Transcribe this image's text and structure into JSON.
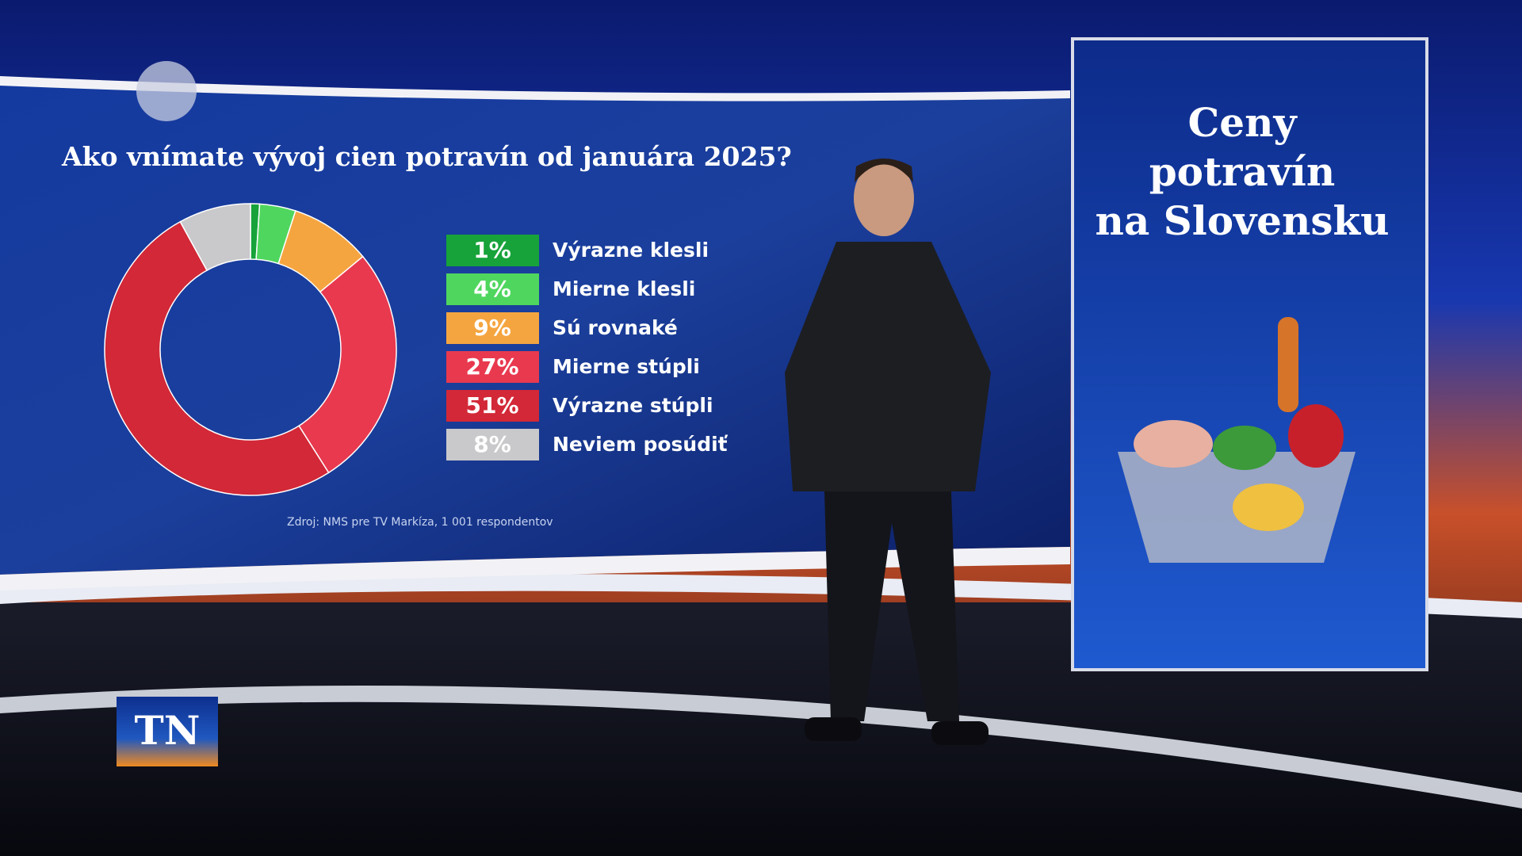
{
  "chart_data": {
    "type": "pie",
    "donut": true,
    "title": "Ako vnímate vývoj cien potravín od januára 2025?",
    "categories": [
      "Výrazne klesli",
      "Mierne klesli",
      "Sú rovnaké",
      "Mierne stúpli",
      "Výrazne stúpli",
      "Neviem posúdiť"
    ],
    "values": [
      1,
      4,
      9,
      27,
      51,
      8
    ],
    "value_labels": [
      "1%",
      "4%",
      "9%",
      "27%",
      "51%",
      "8%"
    ],
    "colors": [
      "#17a33a",
      "#4fd65e",
      "#f5a540",
      "#e8394f",
      "#d22837",
      "#c9c9cc"
    ],
    "source": "Zdroj: NMS pre TV Markíza, 1 001 respondentov"
  },
  "panel": {
    "title_lines": [
      "Ceny",
      "potravín",
      "na Slovensku"
    ]
  },
  "logo": "TN"
}
